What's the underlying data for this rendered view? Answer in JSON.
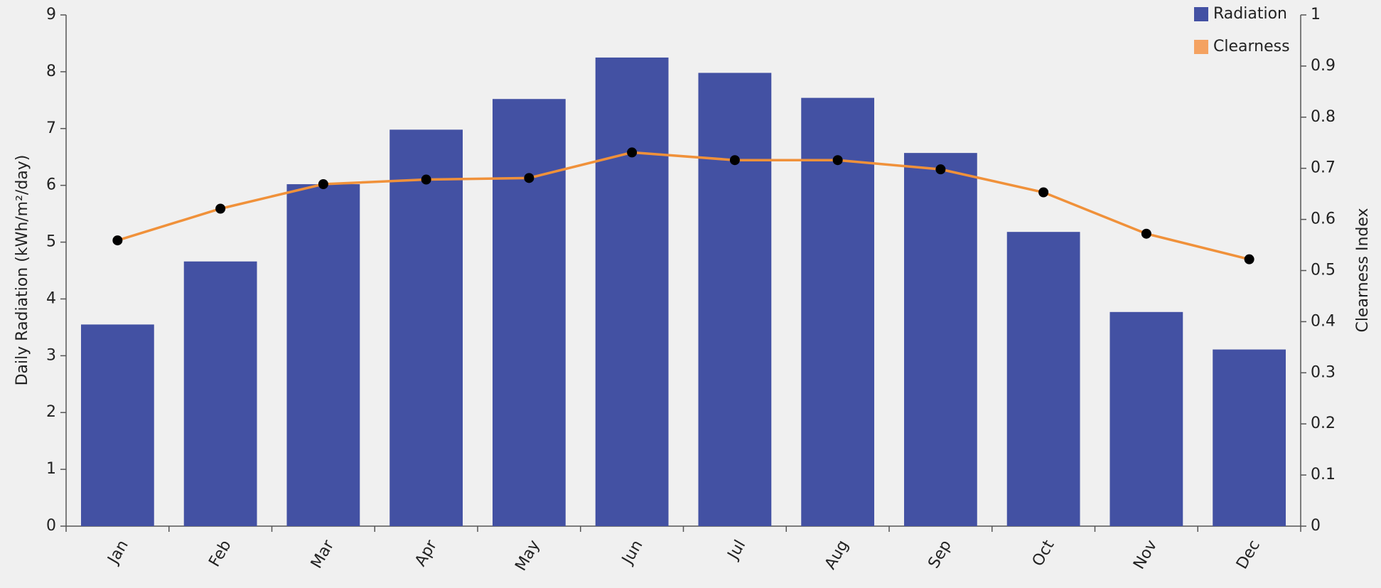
{
  "chart_data": {
    "type": "bar",
    "categories": [
      "Jan",
      "Feb",
      "Mar",
      "Apr",
      "May",
      "Jun",
      "Jul",
      "Aug",
      "Sep",
      "Oct",
      "Nov",
      "Dec"
    ],
    "series": [
      {
        "name": "Radiation",
        "type": "bar",
        "color": "#4351a3",
        "values": [
          3.55,
          4.66,
          6.02,
          6.98,
          7.52,
          8.25,
          7.98,
          7.54,
          6.57,
          5.18,
          3.77,
          3.11
        ]
      },
      {
        "name": "Clearness",
        "type": "line",
        "axis": "y2",
        "color": "#f0913a",
        "marker_color": "#000000",
        "legend_color": "#f4a261",
        "values": [
          0.559,
          0.621,
          0.669,
          0.678,
          0.681,
          0.731,
          0.716,
          0.716,
          0.698,
          0.653,
          0.572,
          0.522
        ]
      }
    ],
    "y_label": "Daily Radiation (kWh/m²/day)",
    "y2_label": "Clearness Index",
    "ylim": [
      0,
      9
    ],
    "yticks": [
      0,
      1,
      2,
      3,
      4,
      5,
      6,
      7,
      8,
      9
    ],
    "y2lim": [
      0,
      1
    ],
    "y2ticks": [
      0,
      0.1,
      0.2,
      0.3,
      0.4,
      0.5,
      0.6,
      0.7,
      0.8,
      0.9,
      1
    ],
    "legend": "top-right"
  }
}
